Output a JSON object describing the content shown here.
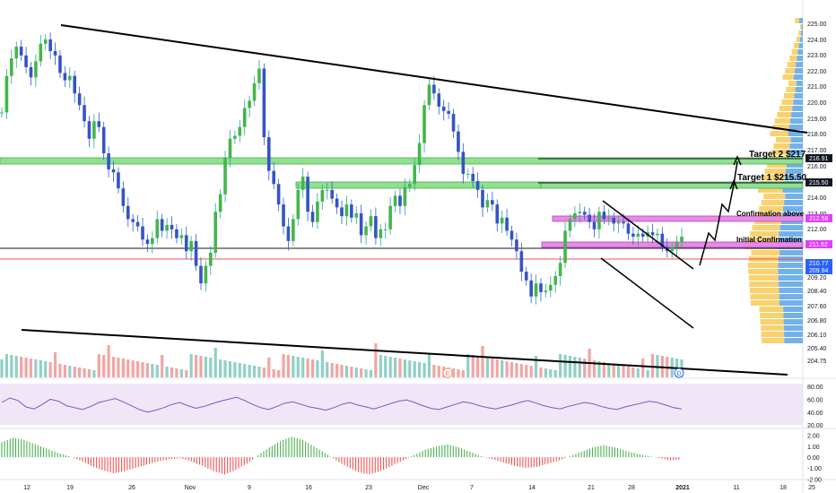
{
  "chart_data": {
    "type": "candlestick",
    "price_axis": {
      "ticks": [
        "225.00",
        "224.00",
        "223.00",
        "222.00",
        "221.00",
        "220.00",
        "219.00",
        "218.00",
        "217.00",
        "216.00",
        "215.00",
        "214.00",
        "213.00",
        "212.00",
        "211.00",
        "210.00",
        "209.20",
        "208.40",
        "207.60",
        "206.80",
        "206.10",
        "205.40",
        "204.75"
      ],
      "badges": [
        {
          "label": "216.91",
          "color": "#131722"
        },
        {
          "label": "215.50",
          "color": "#131722"
        },
        {
          "label": "212.58",
          "color": "#e040fb"
        },
        {
          "label": "211.62",
          "color": "#e040fb"
        },
        {
          "label": "210.77",
          "color": "#2962ff"
        },
        {
          "label": "209.94",
          "color": "#2962ff"
        }
      ]
    },
    "time_axis": {
      "labels": [
        "12",
        "19",
        "26",
        "Nov",
        "9",
        "16",
        "23",
        "Dec",
        "7",
        "14",
        "21",
        "28",
        "2021",
        "11",
        "18",
        "25"
      ]
    },
    "price_series": [
      218.9,
      221.4,
      222.6,
      223.4,
      222.8,
      222.0,
      221.3,
      222.4,
      223.6,
      223.9,
      223.1,
      222.8,
      221.6,
      221.1,
      221.4,
      220.2,
      219.4,
      218.3,
      217.1,
      218.3,
      217.9,
      216.1,
      215.0,
      214.8,
      213.7,
      212.5,
      211.6,
      211.4,
      211.1,
      210.2,
      209.9,
      210.3,
      211.6,
      210.8,
      211.2,
      210.9,
      210.3,
      210.5,
      209.4,
      210.1,
      208.4,
      207.2,
      208.4,
      209.3,
      212.1,
      213.3,
      215.8,
      217.1,
      217.3,
      217.9,
      219.2,
      219.7,
      220.9,
      221.9,
      217.2,
      214.9,
      214.0,
      212.6,
      211.1,
      210.1,
      211.6,
      213.6,
      214.5,
      212.1,
      211.4,
      212.8,
      213.6,
      213.6,
      213.0,
      212.4,
      211.8,
      212.6,
      211.7,
      212.0,
      210.5,
      211.1,
      211.8,
      210.3,
      210.9,
      210.9,
      212.5,
      213.2,
      212.5,
      213.8,
      214.0,
      215.3,
      216.8,
      219.4,
      220.8,
      220.2,
      219.3,
      219.0,
      218.8,
      217.6,
      216.2,
      214.7,
      214.7,
      214.2,
      213.6,
      212.4,
      212.9,
      212.6,
      211.3,
      211.7,
      210.8,
      210.2,
      209.4,
      208.0,
      207.4,
      206.3,
      207.2,
      206.6,
      206.7,
      207.1,
      207.7,
      208.6,
      210.8,
      211.6,
      212.0,
      212.1,
      211.9,
      211.4,
      210.9,
      212.1,
      211.6,
      211.7,
      211.3,
      211.4,
      211.3,
      210.6,
      210.4,
      210.6,
      210.4,
      210.7,
      210.5,
      210.6,
      209.7,
      209.4,
      209.7,
      210.0,
      210.4
    ],
    "levels": [
      {
        "name": "Target 2 $217",
        "price": 216.91,
        "color": "#131722"
      },
      {
        "name": "Target 1 $215.50",
        "price": 215.5,
        "color": "#131722"
      },
      {
        "name": "Confirmation above",
        "price": 212.58,
        "color": "#e040fb"
      },
      {
        "name": "Initial Confirmation",
        "price": 211.62,
        "color": "#e040fb"
      }
    ],
    "annotations": [
      "Target 2 $217",
      "Target 1 $215.50",
      "Confirmation above",
      "Initial Confirmation"
    ],
    "events": [
      "E",
      "D"
    ],
    "rsi": {
      "ticks": [
        "80.00",
        "60.00",
        "40.00",
        "20.00"
      ],
      "band": [
        30,
        70
      ],
      "values": [
        55,
        62,
        58,
        48,
        45,
        52,
        60,
        57,
        50,
        47,
        44,
        49,
        55,
        58,
        61,
        56,
        50,
        44,
        40,
        43,
        47,
        52,
        55,
        50,
        46,
        49,
        53,
        57,
        60,
        63,
        58,
        52,
        47,
        44,
        49,
        54,
        56,
        52,
        48,
        46,
        43,
        47,
        52,
        55,
        51,
        48,
        45,
        49,
        53,
        57,
        59,
        55,
        50,
        46,
        44,
        48,
        52,
        56,
        54,
        50,
        47,
        45,
        48,
        51,
        55,
        58,
        54,
        50,
        47,
        45,
        49,
        52,
        55,
        53,
        49,
        46,
        44,
        48,
        51,
        54,
        57,
        55,
        51,
        47,
        45
      ]
    },
    "macd": {
      "ticks": [
        "2.00",
        "1.00",
        "0.00",
        "-1.00",
        "-2.00"
      ],
      "values": [
        1.4,
        1.8,
        1.6,
        1.2,
        0.8,
        0.4,
        0.1,
        -0.3,
        -0.8,
        -1.2,
        -1.5,
        -1.3,
        -1.0,
        -0.7,
        -0.4,
        -0.2,
        -0.1,
        -0.4,
        -0.8,
        -1.3,
        -1.6,
        -1.2,
        -0.6,
        0.2,
        0.9,
        1.5,
        1.9,
        1.6,
        1.0,
        0.4,
        -0.3,
        -0.9,
        -1.4,
        -1.6,
        -1.3,
        -0.8,
        -0.3,
        0.2,
        0.7,
        1.0,
        1.2,
        0.9,
        0.5,
        0.1,
        -0.2,
        -0.5,
        -0.8,
        -1.0,
        -0.9,
        -0.6,
        -0.3,
        0.1,
        0.5,
        0.9,
        1.1,
        0.9,
        0.6,
        0.3,
        0.1,
        -0.1,
        -0.3,
        -0.2
      ]
    }
  }
}
